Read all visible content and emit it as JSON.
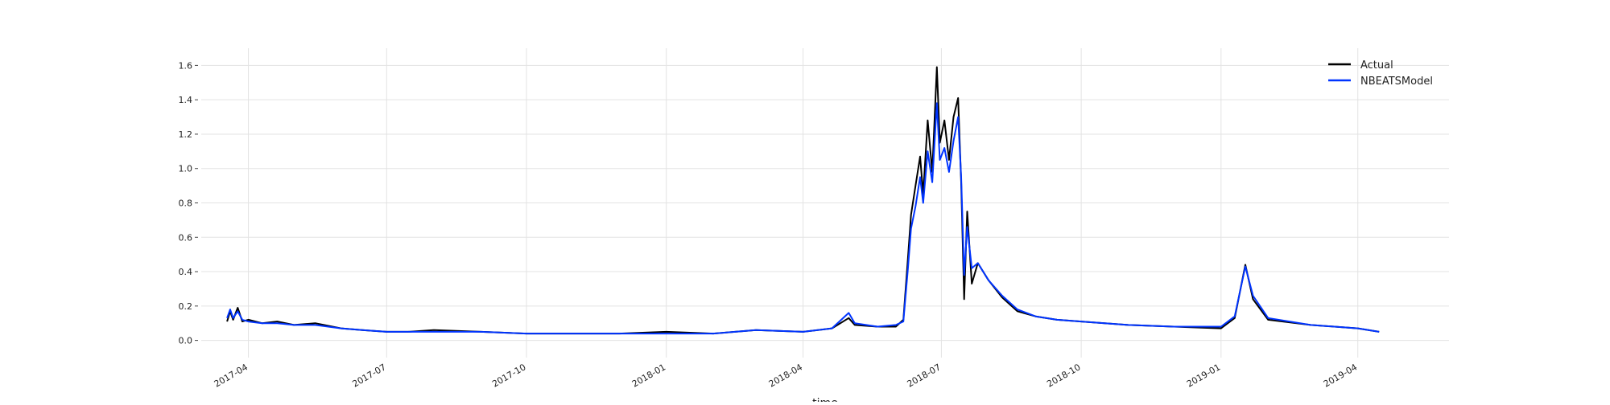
{
  "chart_data": {
    "type": "line",
    "title": "",
    "xlabel": "time",
    "ylabel": "",
    "x_range": [
      "2017-03-01",
      "2019-05-31"
    ],
    "ylim": [
      -0.1,
      1.7
    ],
    "grid": true,
    "legend_position": "top-right",
    "y_ticks": [
      0.0,
      0.2,
      0.4,
      0.6,
      0.8,
      1.0,
      1.2,
      1.4,
      1.6
    ],
    "y_tick_labels": [
      "0.0",
      "0.2",
      "0.4",
      "0.6",
      "0.8",
      "1.0",
      "1.2",
      "1.4",
      "1.6"
    ],
    "x_ticks": [
      "2017-04-01",
      "2017-07-01",
      "2017-10-01",
      "2018-01-01",
      "2018-04-01",
      "2018-07-01",
      "2018-10-01",
      "2019-01-01",
      "2019-04-01"
    ],
    "x_tick_labels": [
      "2017-04",
      "2017-07",
      "2017-10",
      "2018-01",
      "2018-04",
      "2018-07",
      "2018-10",
      "2019-01",
      "2019-04"
    ],
    "series": [
      {
        "name": "Actual",
        "color": "#000000",
        "points": [
          [
            "2017-03-18",
            0.11
          ],
          [
            "2017-03-20",
            0.17
          ],
          [
            "2017-03-22",
            0.12
          ],
          [
            "2017-03-25",
            0.19
          ],
          [
            "2017-03-28",
            0.11
          ],
          [
            "2017-04-01",
            0.12
          ],
          [
            "2017-04-10",
            0.1
          ],
          [
            "2017-04-20",
            0.11
          ],
          [
            "2017-05-01",
            0.09
          ],
          [
            "2017-05-15",
            0.1
          ],
          [
            "2017-06-01",
            0.07
          ],
          [
            "2017-06-15",
            0.06
          ],
          [
            "2017-07-01",
            0.05
          ],
          [
            "2017-07-15",
            0.05
          ],
          [
            "2017-08-01",
            0.06
          ],
          [
            "2017-09-01",
            0.05
          ],
          [
            "2017-10-01",
            0.04
          ],
          [
            "2017-11-01",
            0.04
          ],
          [
            "2017-12-01",
            0.04
          ],
          [
            "2018-01-01",
            0.05
          ],
          [
            "2018-02-01",
            0.04
          ],
          [
            "2018-03-01",
            0.06
          ],
          [
            "2018-04-01",
            0.05
          ],
          [
            "2018-04-20",
            0.07
          ],
          [
            "2018-05-01",
            0.13
          ],
          [
            "2018-05-05",
            0.09
          ],
          [
            "2018-05-20",
            0.08
          ],
          [
            "2018-06-01",
            0.08
          ],
          [
            "2018-06-06",
            0.12
          ],
          [
            "2018-06-09",
            0.48
          ],
          [
            "2018-06-11",
            0.73
          ],
          [
            "2018-06-14",
            0.9
          ],
          [
            "2018-06-17",
            1.07
          ],
          [
            "2018-06-19",
            0.85
          ],
          [
            "2018-06-22",
            1.28
          ],
          [
            "2018-06-25",
            0.98
          ],
          [
            "2018-06-28",
            1.59
          ],
          [
            "2018-06-30",
            1.15
          ],
          [
            "2018-07-03",
            1.28
          ],
          [
            "2018-07-06",
            1.05
          ],
          [
            "2018-07-09",
            1.3
          ],
          [
            "2018-07-12",
            1.41
          ],
          [
            "2018-07-14",
            0.92
          ],
          [
            "2018-07-16",
            0.24
          ],
          [
            "2018-07-18",
            0.75
          ],
          [
            "2018-07-21",
            0.33
          ],
          [
            "2018-07-25",
            0.45
          ],
          [
            "2018-08-01",
            0.35
          ],
          [
            "2018-08-10",
            0.25
          ],
          [
            "2018-08-20",
            0.17
          ],
          [
            "2018-09-01",
            0.14
          ],
          [
            "2018-09-15",
            0.12
          ],
          [
            "2018-10-01",
            0.11
          ],
          [
            "2018-11-01",
            0.09
          ],
          [
            "2018-12-01",
            0.08
          ],
          [
            "2019-01-01",
            0.07
          ],
          [
            "2019-01-10",
            0.13
          ],
          [
            "2019-01-17",
            0.44
          ],
          [
            "2019-01-22",
            0.24
          ],
          [
            "2019-02-01",
            0.12
          ],
          [
            "2019-03-01",
            0.09
          ],
          [
            "2019-04-01",
            0.07
          ],
          [
            "2019-04-15",
            0.05
          ]
        ]
      },
      {
        "name": "NBEATSModel",
        "color": "#0034ff",
        "points": [
          [
            "2017-03-18",
            0.13
          ],
          [
            "2017-03-20",
            0.18
          ],
          [
            "2017-03-22",
            0.13
          ],
          [
            "2017-03-25",
            0.17
          ],
          [
            "2017-03-28",
            0.12
          ],
          [
            "2017-04-01",
            0.11
          ],
          [
            "2017-04-10",
            0.1
          ],
          [
            "2017-04-20",
            0.1
          ],
          [
            "2017-05-01",
            0.09
          ],
          [
            "2017-05-15",
            0.09
          ],
          [
            "2017-06-01",
            0.07
          ],
          [
            "2017-06-15",
            0.06
          ],
          [
            "2017-07-01",
            0.05
          ],
          [
            "2017-07-15",
            0.05
          ],
          [
            "2017-08-01",
            0.05
          ],
          [
            "2017-09-01",
            0.05
          ],
          [
            "2017-10-01",
            0.04
          ],
          [
            "2017-11-01",
            0.04
          ],
          [
            "2017-12-01",
            0.04
          ],
          [
            "2018-01-01",
            0.04
          ],
          [
            "2018-02-01",
            0.04
          ],
          [
            "2018-03-01",
            0.06
          ],
          [
            "2018-04-01",
            0.05
          ],
          [
            "2018-04-20",
            0.07
          ],
          [
            "2018-05-01",
            0.16
          ],
          [
            "2018-05-05",
            0.1
          ],
          [
            "2018-05-20",
            0.08
          ],
          [
            "2018-06-01",
            0.09
          ],
          [
            "2018-06-06",
            0.11
          ],
          [
            "2018-06-09",
            0.42
          ],
          [
            "2018-06-11",
            0.65
          ],
          [
            "2018-06-14",
            0.78
          ],
          [
            "2018-06-17",
            0.95
          ],
          [
            "2018-06-19",
            0.8
          ],
          [
            "2018-06-22",
            1.1
          ],
          [
            "2018-06-25",
            0.92
          ],
          [
            "2018-06-28",
            1.38
          ],
          [
            "2018-06-30",
            1.05
          ],
          [
            "2018-07-03",
            1.12
          ],
          [
            "2018-07-06",
            0.98
          ],
          [
            "2018-07-09",
            1.16
          ],
          [
            "2018-07-12",
            1.3
          ],
          [
            "2018-07-14",
            0.95
          ],
          [
            "2018-07-16",
            0.38
          ],
          [
            "2018-07-18",
            0.66
          ],
          [
            "2018-07-21",
            0.42
          ],
          [
            "2018-07-25",
            0.45
          ],
          [
            "2018-08-01",
            0.35
          ],
          [
            "2018-08-10",
            0.26
          ],
          [
            "2018-08-20",
            0.18
          ],
          [
            "2018-09-01",
            0.14
          ],
          [
            "2018-09-15",
            0.12
          ],
          [
            "2018-10-01",
            0.11
          ],
          [
            "2018-11-01",
            0.09
          ],
          [
            "2018-12-01",
            0.08
          ],
          [
            "2019-01-01",
            0.08
          ],
          [
            "2019-01-10",
            0.14
          ],
          [
            "2019-01-17",
            0.43
          ],
          [
            "2019-01-22",
            0.26
          ],
          [
            "2019-02-01",
            0.13
          ],
          [
            "2019-03-01",
            0.09
          ],
          [
            "2019-04-01",
            0.07
          ],
          [
            "2019-04-15",
            0.05
          ]
        ]
      }
    ]
  }
}
